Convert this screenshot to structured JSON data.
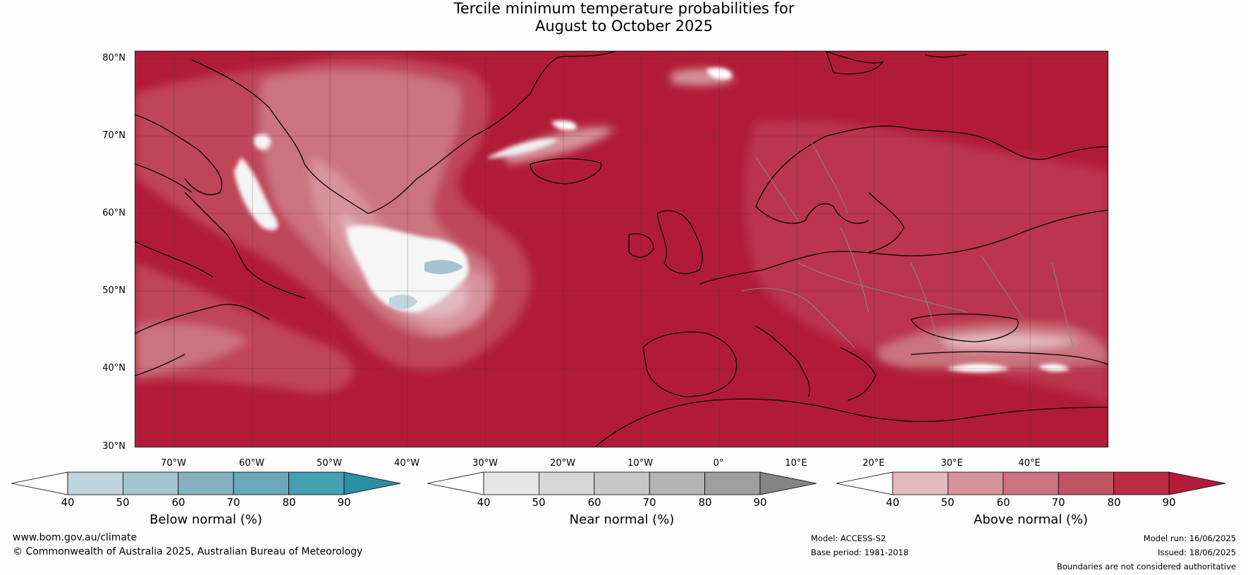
{
  "title": {
    "line1": "Tercile minimum temperature probabilities for",
    "line2": "August to October 2025"
  },
  "map": {
    "lat_labels": [
      "80°N",
      "70°N",
      "60°N",
      "50°N",
      "40°N",
      "30°N"
    ],
    "lon_labels": [
      "70°W",
      "60°W",
      "50°W",
      "40°W",
      "30°W",
      "20°W",
      "10°W",
      "0°",
      "10°E",
      "20°E",
      "30°E",
      "40°E"
    ],
    "base_color": "#b21b38",
    "coast_color": "#000000",
    "border_color": "#888888"
  },
  "colorbars": [
    {
      "label": "Below normal (%)",
      "ticks": [
        "40",
        "50",
        "60",
        "70",
        "80",
        "90"
      ],
      "colors": [
        "#bfd4dc",
        "#a5c4cf",
        "#85b2c1",
        "#69a9b9",
        "#45a0b2",
        "#2a8fa3"
      ],
      "low_color": "#ffffff"
    },
    {
      "label": "Near normal (%)",
      "ticks": [
        "40",
        "50",
        "60",
        "70",
        "80",
        "90"
      ],
      "colors": [
        "#e6e6e6",
        "#d7d7d7",
        "#c8c8c8",
        "#b4b4b4",
        "#9f9f9f",
        "#858585"
      ],
      "low_color": "#ffffff"
    },
    {
      "label": "Above normal (%)",
      "ticks": [
        "40",
        "50",
        "60",
        "70",
        "80",
        "90"
      ],
      "colors": [
        "#e3b8be",
        "#d7939b",
        "#cb737f",
        "#bf5463",
        "#b92c44",
        "#b21b38"
      ],
      "low_color": "#ffffff"
    }
  ],
  "footer": {
    "website": "www.bom.gov.au/climate",
    "copyright": "© Commonwealth of Australia 2025, Australian Bureau of Meteorology",
    "model": "Model: ACCESS-S2",
    "base_period": "Base period: 1981-2018",
    "model_run": "Model run: 16/06/2025",
    "issued": "Issued: 18/06/2025",
    "disclaimer": "Boundaries are not considered authoritative"
  }
}
